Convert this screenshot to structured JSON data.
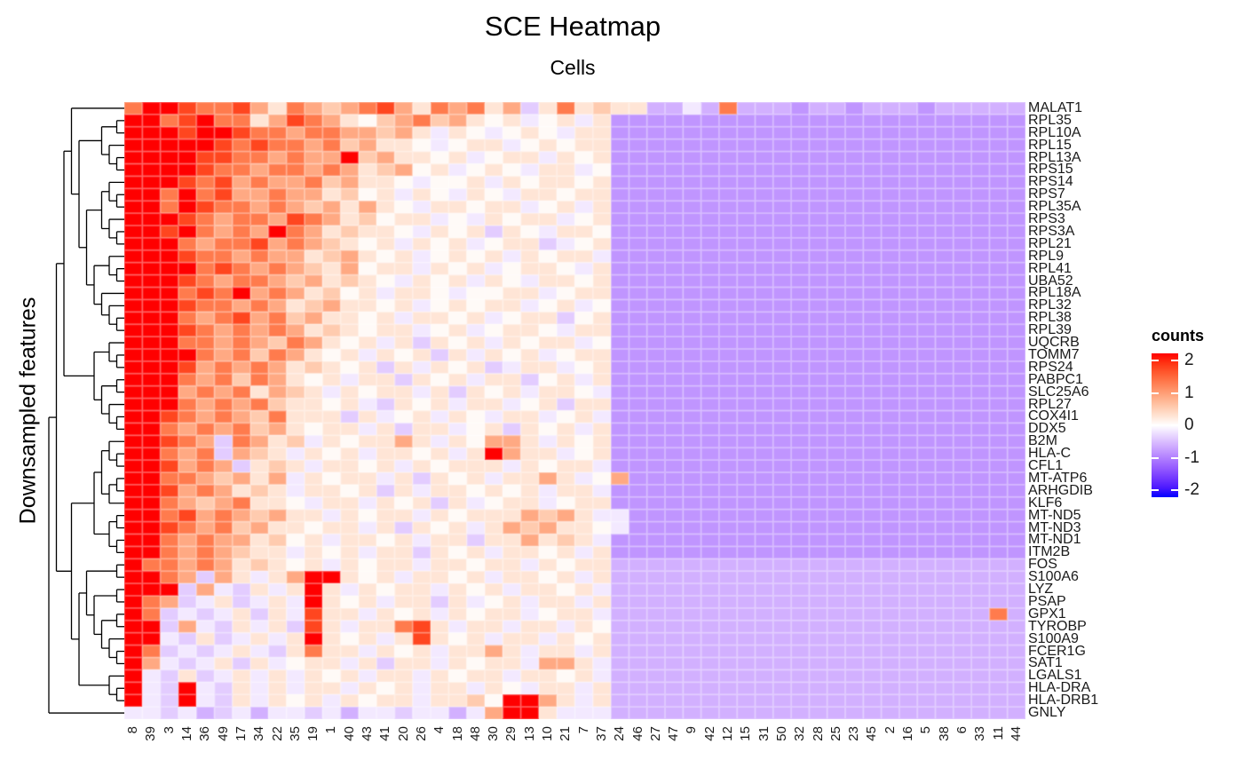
{
  "title": "SCE Heatmap",
  "subtitle": "Cells",
  "y_axis_label": "Downsampled features",
  "legend": {
    "title": "counts",
    "tick_labels": [
      "2",
      "1",
      "0",
      "-1",
      "-2"
    ],
    "tick_values": [
      2,
      1,
      0,
      -1,
      -2
    ],
    "max_color": "#FF0000",
    "mid_color": "#FFFFFF",
    "min_color": "#0000FF"
  },
  "chart_data": {
    "type": "heatmap",
    "title": "SCE Heatmap",
    "subtitle": "Cells",
    "xlabel": "Cells",
    "ylabel": "Downsampled features",
    "legend_title": "counts",
    "vmin": -2,
    "vmax": 2,
    "colormap": "blue-white-red",
    "grid": true,
    "rows": [
      "MALAT1",
      "RPL35",
      "RPL10A",
      "RPL15",
      "RPL13A",
      "RPS15",
      "RPS14",
      "RPS7",
      "RPL35A",
      "RPS3",
      "RPS3A",
      "RPL21",
      "RPL9",
      "RPL41",
      "UBA52",
      "RPL18A",
      "RPL32",
      "RPL38",
      "RPL39",
      "UQCRB",
      "TOMM7",
      "RPS24",
      "PABPC1",
      "SLC25A6",
      "RPL27",
      "COX4I1",
      "DDX5",
      "B2M",
      "HLA-C",
      "CFL1",
      "MT-ATP6",
      "ARHGDIB",
      "KLF6",
      "MT-ND5",
      "MT-ND3",
      "MT-ND1",
      "ITM2B",
      "FOS",
      "S100A6",
      "LYZ",
      "PSAP",
      "GPX1",
      "TYROBP",
      "S100A9",
      "FCER1G",
      "SAT1",
      "LGALS1",
      "HLA-DRA",
      "HLA-DRB1",
      "GNLY"
    ],
    "columns": [
      "8",
      "39",
      "3",
      "14",
      "36",
      "49",
      "17",
      "34",
      "22",
      "35",
      "19",
      "1",
      "40",
      "43",
      "41",
      "20",
      "26",
      "4",
      "18",
      "48",
      "30",
      "29",
      "13",
      "10",
      "21",
      "7",
      "37",
      "24",
      "46",
      "27",
      "47",
      "9",
      "42",
      "12",
      "15",
      "31",
      "50",
      "32",
      "28",
      "25",
      "23",
      "45",
      "2",
      "16",
      "5",
      "38",
      "6",
      "33",
      "11",
      "44"
    ],
    "value_scale": {
      "A": 2.0,
      "B": 1.6,
      "C": 1.2,
      "D": 0.8,
      "E": 0.5,
      "F": 0.25,
      "G": 0.05,
      "H": -0.15,
      "I": -0.35,
      "J": -0.55,
      "K": -0.75,
      "L": -1.0
    },
    "encoding_note": "one char per cell, left to right per row; rows shorter than 50 are padded by repeating the last char",
    "values_encoded": [
      "CAABCCBDFCDEDCBDFCDCFDIFCFEFFJJHJCJJJKJJKJJJKJJJJJ",
      "AACBACCFDBCDFGEDCEDFGFHGFHFKKKKKKKKKKKKKKKKKKKKKKK",
      "AAABAABCCDCCDDEDFHFGHGFGHFFKKKKKKKKKKKKKKKKKKKKKKK",
      "AAAAABCBCCDCEDFFGHGFFHGFGFFKKKKKKKKKKKKKKKKKKKKKKK",
      "AAAABBCCDCDDAEDFFGFHGFFHFGFKKKKKKKKKKKKKKKKKKKKKKK",
      "AAAABCCDCCDCDFEDGFHGFGHFFHGKKKKKKKKKKKKKKKKKKKKKKK",
      "AAABCBDCDDCEDFFGHGGFHFGFFGFKKKKKKKKKKKKKKKKKKKKKKK",
      "AACACBDDCDDFEGFHFGHFGHFFGFFKKKKKKKKKKKKKKKKKKKKKKK",
      "AACABCCDCDEDFDFGHFFGFFHGFHFKKKKKKKKKKKKKKKKKKKKKKK",
      "AAABCDCCDBCDFEGFFHGHFGFFHGFKKKKKKKKKKKKKKKKKKKKKKK",
      "AABACDCDACDFEFFGHFGFIFGHFFGKKKKKKKKKKKKKKKKKKKKKKK",
      "AAACDCCBDCDEFGFHFGFHGFFIHGFKKKKKKKKKKKKKKKKKKKKKKK",
      "AAABCCDCDDFEDFGFHGFGFHFGFFHKKKKKKKKKKKKKKKKKKKKKKK",
      "AAAACBCDCDEFDGFFHFGFHGFFGHFKKKKKKKKKKKKKKKKKKKKKKK",
      "AAABCDCCDEDFEFGHFGFHFGHFFGFKKKKKKKKKKKKKKKKKKKKKKK",
      "AAACBCADCDFEGFHFFGHGGFFHGFFKKKKKKKKKKKKKKKKKKKKKKK",
      "AAABCCDCDFEDFFGFHGFGFFHGFHGKKKKKKKKKKKKKKKKKKKKKKK",
      "AAACDCBDCEDFFGFHFFGFHGFFIGFKKKKKKKKKKKKKKKKKKKKKKK",
      "AAABCDCDCDFEFGFFHGFHGFFGHFFKKKKKKKKKKKKKKKKKKKKKKK",
      "AAACCDCDECDFGFHFIFGFHFGFFHGKKKKKKKKKKKKKKKKKKKKKKK",
      "AAAACDCECDFGFHFGFIFHFGFHGFFKKKKKKKKKKKKKKKKKKKKKKK",
      "AAABDCDCDFEFGFIFHFGFIHFFHGFKKKKKKKKKKKKKKKKKKKKKKK",
      "AAACDCECDFGFHFFIFGFHFFIGFHFKKKKKKKKKKKKKKKKKKKKKKK",
      "AAADCDCFDEFHFGFFHFIFGFHFFGHKKKKKKKKKKKKKKKKKKKKKKK",
      "AAACDCDCEFFGFHIFGFHFFHGFIFFKKKKKKKKKKKKKKKKKKKKKKK",
      "AABCDCDECFFFIFHGFHFGHFFHGFHKKKKKKKKKKKKKKKKKKKKKKK",
      "AACDCDCEDFGFFHFIFFHGFIFGFHFKKKKKKKKKKKKKKKKKKKKKKK",
      "AABCDICDFEHFGFFDFHFGDDFHFGFKKKKKKKKKKKKKKKKKKKKKKK",
      "AACDCIDEFHFGFHFFGFHFADFFHGFKKKKKKKKKKKKKKKKKKKKKKK",
      "AABDCDIFEFHFFGFHFGFFFHFGFFHKKKKKKKKKKKKKKKKKKKKKKK",
      "AACCDEDFDHFGFFHFIFGFHFFDFHGDKKKKKKKKKKKKKKKKKKKKKK",
      "AABDCDFEFHFFGFIFHFFGFGFHFFHKKKKKKKKKKKKKKKKKKKKKKK",
      "AACDEDCFFGHFFHFGFIFHGFFHGFFKKKKKKKKKKKKKKKKKKKKKKK",
      "AACBDCDEDFFHFGFFHFGFFFDEDFHHKKKKKKKKKKKKKKKKKKKKKK",
      "AABCDCEDFFGFFHFIFGFHFDEDFFGHKKKKKKKKKKKKKKKKKKKKKK",
      "AACDCDDFEGFHFFGFHFFIFFDFEFHKKKKKKKKKKKKKKKKKKKKKKK",
      "AACDCDEFFHFGFHFFIFGFHFFGFHFKKKKKKKKKKKKKKKKKKKKKKK",
      "ACCDCDFEFGFHFGFFHFFGFFHFGFFJJJJJJJJJJJJJJJJJJJJJJJ",
      "AACDIDFHFDAAFGFHFFGFHFFGFHFJJJJJJJJJJJJJJJJJJJJJJJ",
      "AAAIDHIFHFAFHFGFFHFGFHFFGFHJJJJJJJJJJJJJJJJJJJJJJJ",
      "ACDIHFIHFHAFGFHFFIFHGFHFFHFJJJJJJJJJJJJJJJJJJJJJJJ",
      "ACIHIHFIFHBFFHFGFHFGFFHGFFHJJJJJJJJJJJJJJJJJJJJJCJ",
      "AAIDHIFHFIBFHFFCBFHFFHFFHFGJJJJJJJJJJJJJJJJJJJJJJJ",
      "AAHIFIHFHFAFGFHFBFGFHFFHFGFJJJJJJJJJJJJJJJJJJJJJJJ",
      "ACIHIHFHIFCFFHFGFHFFDFHFFHFJJJJJJJJJJJJJJJJJJJJJJJ",
      "ADHIHFIFHGFFHFIFFHFGFFHDDFHJJJJJJJJJJJJJJJJJJJJJJJ",
      "AHIFIHFHFHFGFHFFHFGFFHFFGFHJJJJJJJJJJJJJJJJJJJJJJJ",
      "AHIAHIFHFHFFHFGFHFFHFGHFFHFJJJJJJJJJJJJJJJJJJJJJJJ",
      "AHIAHIFHFGFHFGFFHFFEGAADFHFJJJJJJJJJJJJJJJJJJJJJJJ",
      "HHIHJIHJHHIHJHHIHHJHDAAFHHHJJJJJJJJJJJJJJJJJJJJJJJ"
    ],
    "row_dendrogram": [
      [
        [
          [
            1,
            [
              [
                [
                  2,
                  3
                ],
                [
                  4,
                  [
                    5,
                    6
                  ]
                ]
              ],
              [
                [
                  [
                    7,
                    [
                      8,
                      9
                    ]
                  ],
                  [
                    10,
                    [
                      11,
                      12
                    ]
                  ]
                ],
                [
                  [
                    13,
                    [
                      14,
                      15
                    ]
                  ],
                  [
                    16,
                    [
                      17,
                      [
                        18,
                        19
                      ]
                    ]
                  ]
                ]
              ]
            ]
          ],
          [
            [
              20,
              [
                21,
                22
              ]
            ],
            [
              [
                23,
                24
              ],
              [
                25,
                [
                  26,
                  27
                ]
              ]
            ]
          ]
        ],
        [
          [
            [
              [
                28,
                [
                  29,
                  30
                ]
              ],
              [
                [
                  31,
                  32
                ],
                33
              ]
            ],
            [
              [
                34,
                35
              ],
              [
                36,
                37
              ]
            ]
          ],
          [
            [
              [
                38,
                39
              ],
              [
                [
                  40,
                  41
                ],
                [
                  [
                    42,
                    43
                  ],
                  [
                    44,
                    [
                      45,
                      46
                    ]
                  ]
                ]
              ]
            ],
            [
              47,
              [
                48,
                49
              ]
            ]
          ]
        ]
      ],
      50
    ]
  }
}
